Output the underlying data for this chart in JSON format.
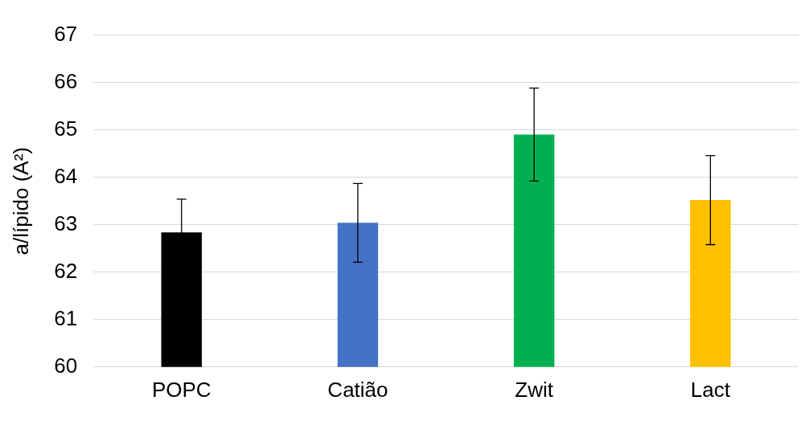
{
  "chart_data": {
    "type": "bar",
    "ylabel": "a/lípido (A²)",
    "categories": [
      "POPC",
      "Catião",
      "Zwit",
      "Lact"
    ],
    "values": [
      62.84,
      63.04,
      64.9,
      63.52
    ],
    "colors": [
      "#000000",
      "#4472c4",
      "#00b050",
      "#ffc000"
    ],
    "errors": [
      0.7,
      0.83,
      0.98,
      0.94
    ],
    "ylim": [
      60,
      67
    ],
    "yticks": [
      60,
      61,
      62,
      63,
      64,
      65,
      66,
      67
    ],
    "grid": "y",
    "legend": false
  }
}
